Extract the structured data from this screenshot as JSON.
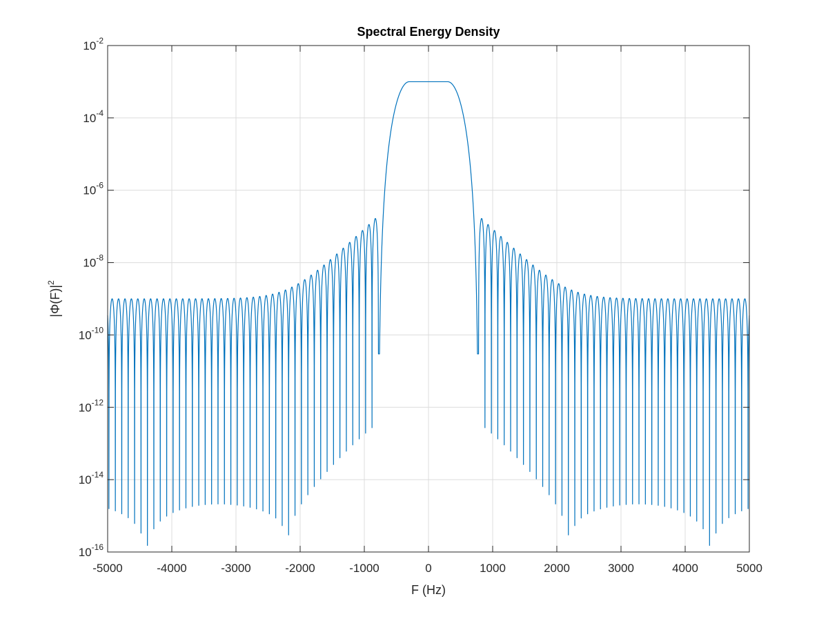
{
  "chart_data": {
    "type": "line",
    "title": "Spectral Energy Density",
    "xlabel": "F (Hz)",
    "ylabel": "|Φ(F)|",
    "ylabel_superscript": "2",
    "xlim": [
      -5000,
      5000
    ],
    "ylim": [
      1e-16,
      0.01
    ],
    "yscale": "log",
    "grid": true,
    "x_ticks": [
      -5000,
      -4000,
      -3000,
      -2000,
      -1000,
      0,
      1000,
      2000,
      3000,
      4000,
      5000
    ],
    "x_tick_labels": [
      "-5000",
      "-4000",
      "-3000",
      "-2000",
      "-1000",
      "0",
      "1000",
      "2000",
      "3000",
      "4000",
      "5000"
    ],
    "y_ticks": [
      {
        "value": 1e-16,
        "base": "10",
        "exp": "-16"
      },
      {
        "value": 1e-14,
        "base": "10",
        "exp": "-14"
      },
      {
        "value": 1e-12,
        "base": "10",
        "exp": "-12"
      },
      {
        "value": 1e-10,
        "base": "10",
        "exp": "-10"
      },
      {
        "value": 1e-08,
        "base": "10",
        "exp": "-8"
      },
      {
        "value": 1e-06,
        "base": "10",
        "exp": "-6"
      },
      {
        "value": 0.0001,
        "base": "10",
        "exp": "-4"
      },
      {
        "value": 0.01,
        "base": "10",
        "exp": "-2"
      }
    ],
    "series": [
      {
        "color": "#0072bd",
        "description_points": {
          "passband_level": 0.001,
          "passband_half_width_hz": 300,
          "band_edge_hz": 780,
          "sidelobe_spacing_hz": 100,
          "first_sidelobe_peak": 2e-07,
          "far_sidelobe_floor": 1e-09
        }
      }
    ]
  }
}
